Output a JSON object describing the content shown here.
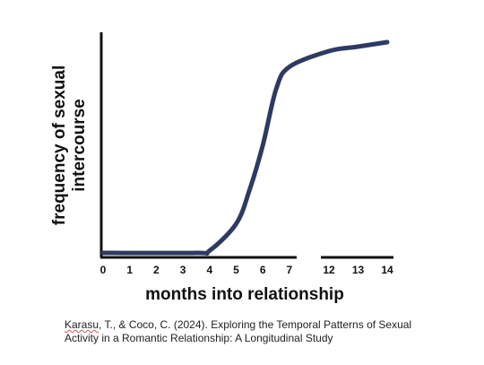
{
  "chart_data": {
    "type": "line",
    "title": "",
    "xlabel": "months into relationship",
    "ylabel": "frequency of sexual intercourse",
    "x_ticks": [
      "0",
      "1",
      "2",
      "3",
      "4",
      "5",
      "6",
      "7",
      "12",
      "13",
      "14"
    ],
    "axis_break": "between 7 and 12",
    "y_ticks": [],
    "grid": false,
    "legend": "none",
    "series": [
      {
        "color": "#2e3a62",
        "points": [
          {
            "x": 0,
            "y": 0.02
          },
          {
            "x": 3.5,
            "y": 0.02
          },
          {
            "x": 4,
            "y": 0.03
          },
          {
            "x": 5,
            "y": 0.15
          },
          {
            "x": 5.5,
            "y": 0.3
          },
          {
            "x": 6,
            "y": 0.5
          },
          {
            "x": 6.5,
            "y": 0.75
          },
          {
            "x": 7,
            "y": 0.85
          },
          {
            "x": 12,
            "y": 0.92
          },
          {
            "x": 13,
            "y": 0.94
          },
          {
            "x": 14,
            "y": 0.96
          }
        ]
      }
    ]
  },
  "citation": {
    "author_word": "Karasu",
    "line1_rest": ", T., & Coco, C. (2024). Exploring the Temporal Patterns of Sexual",
    "line2": "Activity in a Romantic Relationship: A Longitudinal Study"
  },
  "colors": {
    "curve": "#2e3a62",
    "axes": "#111111",
    "citation_underline": "#d9534f"
  }
}
